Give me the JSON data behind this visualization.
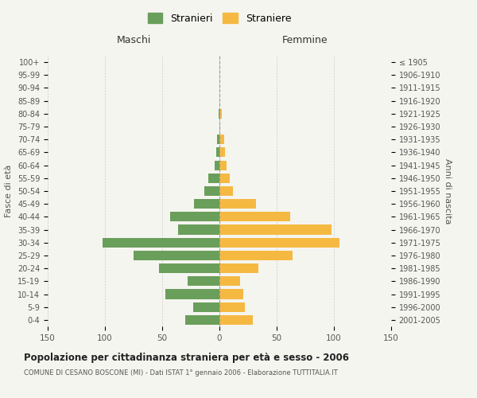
{
  "age_groups": [
    "0-4",
    "5-9",
    "10-14",
    "15-19",
    "20-24",
    "25-29",
    "30-34",
    "35-39",
    "40-44",
    "45-49",
    "50-54",
    "55-59",
    "60-64",
    "65-69",
    "70-74",
    "75-79",
    "80-84",
    "85-89",
    "90-94",
    "95-99",
    "100+"
  ],
  "birth_years": [
    "2001-2005",
    "1996-2000",
    "1991-1995",
    "1986-1990",
    "1981-1985",
    "1976-1980",
    "1971-1975",
    "1966-1970",
    "1961-1965",
    "1956-1960",
    "1951-1955",
    "1946-1950",
    "1941-1945",
    "1936-1940",
    "1931-1935",
    "1926-1930",
    "1921-1925",
    "1916-1920",
    "1911-1915",
    "1906-1910",
    "≤ 1905"
  ],
  "maschi": [
    30,
    23,
    47,
    28,
    53,
    75,
    102,
    36,
    43,
    22,
    13,
    10,
    4,
    3,
    2,
    0,
    1,
    0,
    0,
    0,
    0
  ],
  "femmine": [
    29,
    22,
    21,
    18,
    34,
    64,
    105,
    98,
    62,
    32,
    12,
    9,
    6,
    5,
    4,
    1,
    2,
    0,
    0,
    0,
    0
  ],
  "maschi_color": "#6a9e5b",
  "femmine_color": "#f5b942",
  "background_color": "#f5f5f0",
  "grid_color": "#cccccc",
  "title": "Popolazione per cittadinanza straniera per età e sesso - 2006",
  "subtitle": "COMUNE DI CESANO BOSCONE (MI) - Dati ISTAT 1° gennaio 2006 - Elaborazione TUTTITALIA.IT",
  "xlabel_left": "Maschi",
  "xlabel_right": "Femmine",
  "ylabel_left": "Fasce di età",
  "ylabel_right": "Anni di nascita",
  "legend_maschi": "Stranieri",
  "legend_femmine": "Straniere",
  "xlim": 150
}
